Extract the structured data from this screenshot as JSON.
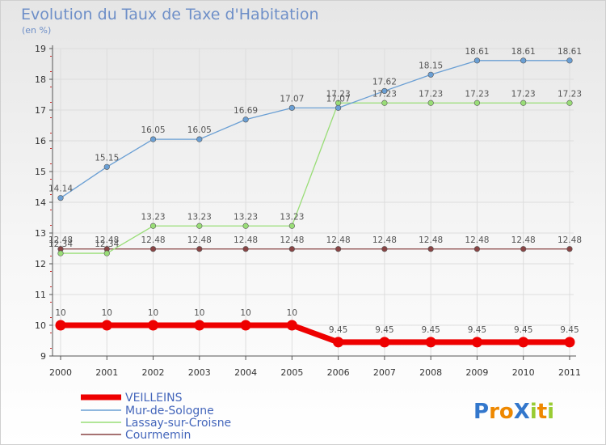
{
  "chart_data": {
    "type": "line",
    "title": "Evolution du Taux de Taxe d'Habitation",
    "subtitle": "(en %)",
    "xlabel": "",
    "ylabel": "",
    "x": [
      "2000",
      "2001",
      "2002",
      "2003",
      "2004",
      "2005",
      "2006",
      "2007",
      "2008",
      "2009",
      "2010",
      "2011"
    ],
    "ylim": [
      9,
      19
    ],
    "yticks": [
      "9",
      "10",
      "11",
      "12",
      "13",
      "14",
      "15",
      "16",
      "17",
      "18",
      "19"
    ],
    "grid": true,
    "legend_position": "bottom-left",
    "series": [
      {
        "name": "VEILLEINS",
        "color": "#ee0000",
        "values": [
          10,
          10,
          10,
          10,
          10,
          10,
          9.45,
          9.45,
          9.45,
          9.45,
          9.45,
          9.45
        ],
        "labels": [
          "10",
          "10",
          "10",
          "10",
          "10",
          "10",
          "9.45",
          "9.45",
          "9.45",
          "9.45",
          "9.45",
          "9.45"
        ]
      },
      {
        "name": "Mur-de-Sologne",
        "color": "#6a9fd4",
        "values": [
          14.14,
          15.15,
          16.05,
          16.05,
          16.69,
          17.07,
          17.07,
          17.62,
          18.15,
          18.61,
          18.61,
          18.61
        ],
        "labels": [
          "14.14",
          "15.15",
          "16.05",
          "16.05",
          "16.69",
          "17.07",
          "17.07",
          "17.62",
          "18.15",
          "18.61",
          "18.61",
          "18.61"
        ]
      },
      {
        "name": "Lassay-sur-Croisne",
        "color": "#99dd77",
        "values": [
          12.34,
          12.34,
          13.23,
          13.23,
          13.23,
          13.23,
          17.23,
          17.23,
          17.23,
          17.23,
          17.23,
          17.23
        ],
        "labels": [
          "12.34",
          "12.34",
          "13.23",
          "13.23",
          "13.23",
          "13.23",
          "17.23",
          "17.23",
          "17.23",
          "17.23",
          "17.23",
          "17.23"
        ]
      },
      {
        "name": "Courmemin",
        "color": "#884444",
        "values": [
          12.48,
          12.48,
          12.48,
          12.48,
          12.48,
          12.48,
          12.48,
          12.48,
          12.48,
          12.48,
          12.48,
          12.48
        ],
        "labels": [
          "12.48",
          "12.48",
          "12.48",
          "12.48",
          "12.48",
          "12.48",
          "12.48",
          "12.48",
          "12.48",
          "12.48",
          "12.48",
          "12.48"
        ]
      }
    ]
  },
  "logo": {
    "text": "ProXiti",
    "letters": [
      "P",
      "r",
      "o",
      "X",
      "i",
      "t",
      "i"
    ],
    "colors": [
      "#3377cc",
      "#ee8800",
      "#ee8800",
      "#3377cc",
      "#99cc33",
      "#ee8800",
      "#99cc33"
    ]
  }
}
